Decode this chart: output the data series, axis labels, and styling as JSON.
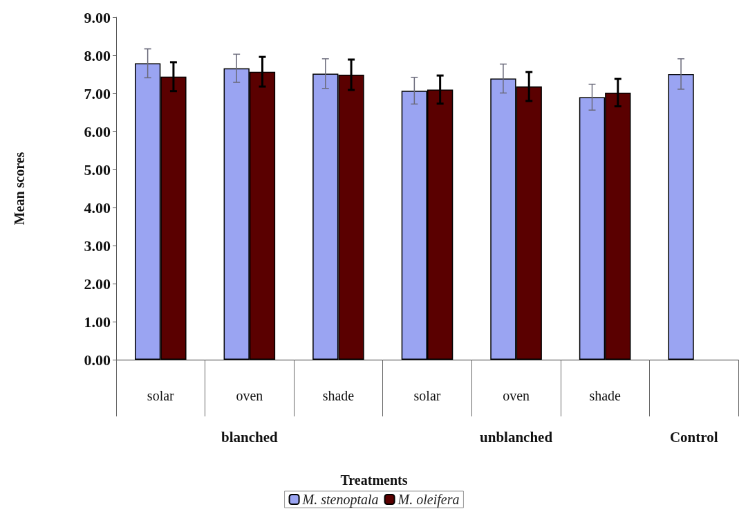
{
  "chart_data": {
    "type": "bar",
    "categories": [
      "solar",
      "oven",
      "shade",
      "solar",
      "oven",
      "shade",
      null
    ],
    "series": [
      {
        "name": "M. stenoptala",
        "color": "#9aa4f2",
        "values": [
          7.79,
          7.66,
          7.52,
          7.07,
          7.39,
          6.9,
          7.51
        ],
        "errors": [
          0.38,
          0.37,
          0.39,
          0.35,
          0.38,
          0.34,
          0.4
        ]
      },
      {
        "name": "M. oleifera",
        "color": "#5a0000",
        "values": [
          7.44,
          7.57,
          7.49,
          7.1,
          7.18,
          7.02,
          null
        ],
        "errors": [
          0.38,
          0.39,
          0.4,
          0.37,
          0.38,
          0.36,
          null
        ]
      }
    ],
    "ylabel": "Mean scores",
    "xlabel": "Treatments",
    "ylim": [
      0,
      9
    ],
    "yticks": [
      {
        "value": 0,
        "label": "0.00"
      },
      {
        "value": 1,
        "label": "1.00"
      },
      {
        "value": 2,
        "label": "2.00"
      },
      {
        "value": 3,
        "label": "3.00"
      },
      {
        "value": 4,
        "label": "4.00"
      },
      {
        "value": 5,
        "label": "5.00"
      },
      {
        "value": 6,
        "label": "6.00"
      },
      {
        "value": 7,
        "label": "7.00"
      },
      {
        "value": 8,
        "label": "8.00"
      },
      {
        "value": 9,
        "label": "9.00"
      }
    ],
    "annotations": [
      "blanched",
      "unblanched",
      "Control"
    ],
    "grid": false,
    "legend": "bottom"
  }
}
